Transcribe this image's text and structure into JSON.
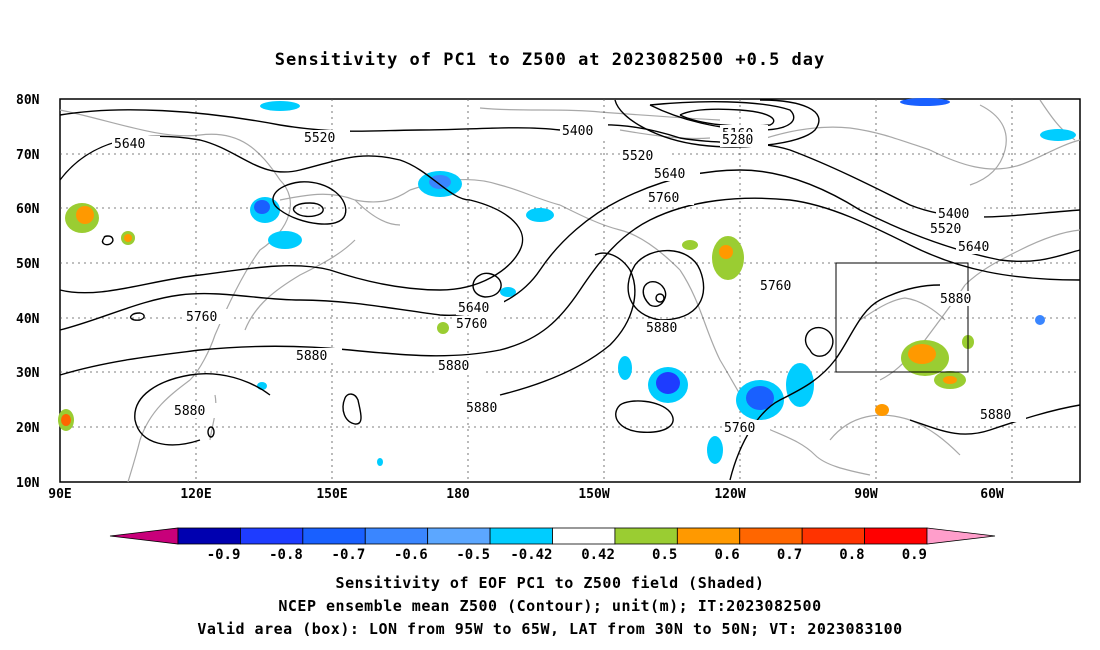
{
  "title": "Sensitivity of PC1 to Z500 at 2023082500 +0.5 day",
  "map": {
    "lat_ticks": [
      "80N",
      "70N",
      "60N",
      "50N",
      "40N",
      "30N",
      "20N",
      "10N"
    ],
    "lon_ticks": [
      "90E",
      "120E",
      "150E",
      "180",
      "150W",
      "120W",
      "90W",
      "60W"
    ],
    "gridlines": "dotted",
    "contour_labels": [
      "5640",
      "5520",
      "5400",
      "5160",
      "5280",
      "5520",
      "5640",
      "5760",
      "5640",
      "5760",
      "5880",
      "5760",
      "5880",
      "5880",
      "5880",
      "5400",
      "5520",
      "5640",
      "5760",
      "5880",
      "5880",
      "5760",
      "5880"
    ],
    "box": {
      "lon": [
        "95W",
        "65W"
      ],
      "lat": [
        "30N",
        "50N"
      ]
    }
  },
  "colorbar": {
    "labels": [
      "-0.9",
      "-0.8",
      "-0.7",
      "-0.6",
      "-0.5",
      "-0.42",
      "0.42",
      "0.5",
      "0.6",
      "0.7",
      "0.8",
      "0.9"
    ],
    "colors": [
      "#c8007a",
      "#0000b0",
      "#1e3cff",
      "#1960ff",
      "#3a86ff",
      "#5ca7ff",
      "#00cdff",
      "#ffffff",
      "#9acd32",
      "#ff9900",
      "#ff6600",
      "#ff3300",
      "#ff0000",
      "#ff9ecb"
    ]
  },
  "captions": [
    "Sensitivity of EOF PC1 to Z500 field (Shaded)",
    "NCEP ensemble mean Z500 (Contour); unit(m); IT:2023082500",
    "Valid area (box): LON from 95W to 65W, LAT from 30N to 50N; VT: 2023083100"
  ]
}
